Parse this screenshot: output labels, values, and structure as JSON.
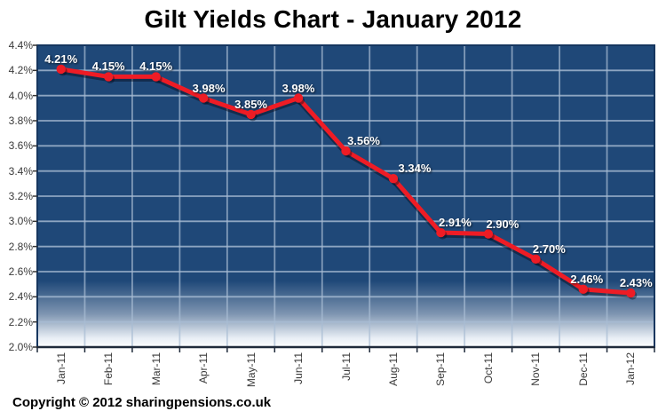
{
  "title": "Gilt Yields Chart - January 2012",
  "footer": {
    "copyright": "Copyright © 2012 sharingpensions.co.uk"
  },
  "chart_data": {
    "type": "line",
    "title": "Gilt Yields Chart - January 2012",
    "categories": [
      "Jan-11",
      "Feb-11",
      "Mar-11",
      "Apr-11",
      "May-11",
      "Jun-11",
      "Jul-11",
      "Aug-11",
      "Sep-11",
      "Oct-11",
      "Nov-11",
      "Dec-11",
      "Jan-12"
    ],
    "series": [
      {
        "name": "Gilt Yield",
        "values": [
          4.21,
          4.15,
          4.15,
          3.98,
          3.85,
          3.98,
          3.56,
          3.34,
          2.91,
          2.9,
          2.7,
          2.46,
          2.43
        ]
      }
    ],
    "point_labels": [
      "4.21%",
      "4.15%",
      "4.15%",
      "3.98%",
      "3.85%",
      "3.98%",
      "3.56%",
      "3.34%",
      "2.91%",
      "2.90%",
      "2.70%",
      "2.46%",
      "2.43%"
    ],
    "ytick_labels": [
      "4.4%",
      "4.2%",
      "4.0%",
      "3.8%",
      "3.6%",
      "3.4%",
      "3.2%",
      "3.0%",
      "2.8%",
      "2.6%",
      "2.4%",
      "2.2%",
      "2.0%"
    ],
    "ylim": [
      2.0,
      4.4
    ],
    "ytick_step": 0.2,
    "grid": true,
    "legend": "none",
    "xlabel": "",
    "ylabel": "",
    "label_offsets_dx": [
      0,
      0,
      0,
      6,
      0,
      0,
      20,
      24,
      16,
      16,
      15,
      4,
      6
    ],
    "colors": {
      "plot_background": "#1f4878",
      "plot_fade_bottom": "#fcfdfe",
      "gridline": "#a9bdd4",
      "border": "#16365f",
      "axis": "#1f2a3a",
      "series_line": "#ee1c25",
      "data_label_text": "#ffffff",
      "tick_text": "#3a3a3a"
    }
  }
}
